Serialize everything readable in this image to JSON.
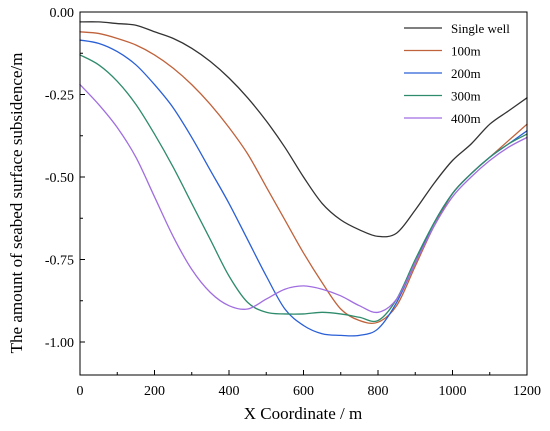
{
  "chart_data": {
    "type": "line",
    "xlabel": "X Coordinate / m",
    "ylabel": "The amount of seabed surface subsidence/m",
    "xlim": [
      0,
      1200
    ],
    "ylim": [
      -1.1,
      0.0
    ],
    "x_ticks": [
      0,
      200,
      400,
      600,
      800,
      1000,
      1200
    ],
    "x_tick_labels": [
      "0",
      "200",
      "400",
      "600",
      "800",
      "1000",
      "1200"
    ],
    "y_ticks": [
      0.0,
      -0.25,
      -0.5,
      -0.75,
      -1.0
    ],
    "y_tick_labels": [
      "0.00",
      "-0.25",
      "-0.50",
      "-0.75",
      "-1.00"
    ],
    "grid": false,
    "legend_position": "top-right",
    "series": [
      {
        "name": "Single well",
        "color": "#333333",
        "x": [
          0,
          50,
          100,
          150,
          200,
          250,
          300,
          350,
          400,
          450,
          500,
          550,
          600,
          650,
          700,
          750,
          800,
          850,
          900,
          950,
          1000,
          1050,
          1100,
          1150,
          1200
        ],
        "y": [
          -0.03,
          -0.03,
          -0.035,
          -0.04,
          -0.06,
          -0.08,
          -0.11,
          -0.15,
          -0.2,
          -0.26,
          -0.33,
          -0.41,
          -0.5,
          -0.58,
          -0.63,
          -0.66,
          -0.68,
          -0.67,
          -0.6,
          -0.52,
          -0.45,
          -0.4,
          -0.34,
          -0.3,
          -0.26
        ]
      },
      {
        "name": "100m",
        "color": "#c0623b",
        "x": [
          0,
          50,
          100,
          150,
          200,
          250,
          300,
          350,
          400,
          450,
          500,
          550,
          600,
          650,
          700,
          750,
          800,
          850,
          900,
          950,
          1000,
          1050,
          1100,
          1150,
          1200
        ],
        "y": [
          -0.06,
          -0.065,
          -0.08,
          -0.1,
          -0.13,
          -0.17,
          -0.22,
          -0.28,
          -0.35,
          -0.43,
          -0.53,
          -0.63,
          -0.73,
          -0.82,
          -0.9,
          -0.935,
          -0.94,
          -0.89,
          -0.77,
          -0.65,
          -0.55,
          -0.49,
          -0.44,
          -0.39,
          -0.34
        ]
      },
      {
        "name": "200m",
        "color": "#2a5fd6",
        "x": [
          0,
          50,
          100,
          150,
          200,
          250,
          300,
          350,
          400,
          450,
          500,
          550,
          600,
          650,
          700,
          750,
          800,
          850,
          900,
          950,
          1000,
          1050,
          1100,
          1150,
          1200
        ],
        "y": [
          -0.085,
          -0.095,
          -0.12,
          -0.16,
          -0.22,
          -0.29,
          -0.38,
          -0.48,
          -0.58,
          -0.69,
          -0.8,
          -0.9,
          -0.95,
          -0.975,
          -0.98,
          -0.98,
          -0.96,
          -0.88,
          -0.76,
          -0.64,
          -0.55,
          -0.49,
          -0.44,
          -0.4,
          -0.36
        ]
      },
      {
        "name": "300m",
        "color": "#2e8b6b",
        "x": [
          0,
          50,
          100,
          150,
          200,
          250,
          300,
          350,
          400,
          450,
          500,
          550,
          600,
          650,
          700,
          750,
          800,
          850,
          900,
          950,
          1000,
          1050,
          1100,
          1150,
          1200
        ],
        "y": [
          -0.13,
          -0.16,
          -0.21,
          -0.28,
          -0.37,
          -0.47,
          -0.58,
          -0.69,
          -0.8,
          -0.88,
          -0.91,
          -0.915,
          -0.915,
          -0.91,
          -0.915,
          -0.925,
          -0.935,
          -0.87,
          -0.75,
          -0.64,
          -0.55,
          -0.49,
          -0.44,
          -0.4,
          -0.37
        ]
      },
      {
        "name": "400m",
        "color": "#a06ee0",
        "x": [
          0,
          50,
          100,
          150,
          200,
          250,
          300,
          350,
          400,
          450,
          500,
          550,
          600,
          650,
          700,
          750,
          800,
          850,
          900,
          950,
          1000,
          1050,
          1100,
          1150,
          1200
        ],
        "y": [
          -0.22,
          -0.28,
          -0.35,
          -0.44,
          -0.56,
          -0.68,
          -0.78,
          -0.85,
          -0.89,
          -0.9,
          -0.87,
          -0.84,
          -0.83,
          -0.84,
          -0.86,
          -0.89,
          -0.91,
          -0.87,
          -0.76,
          -0.65,
          -0.56,
          -0.5,
          -0.45,
          -0.41,
          -0.38
        ]
      }
    ]
  }
}
